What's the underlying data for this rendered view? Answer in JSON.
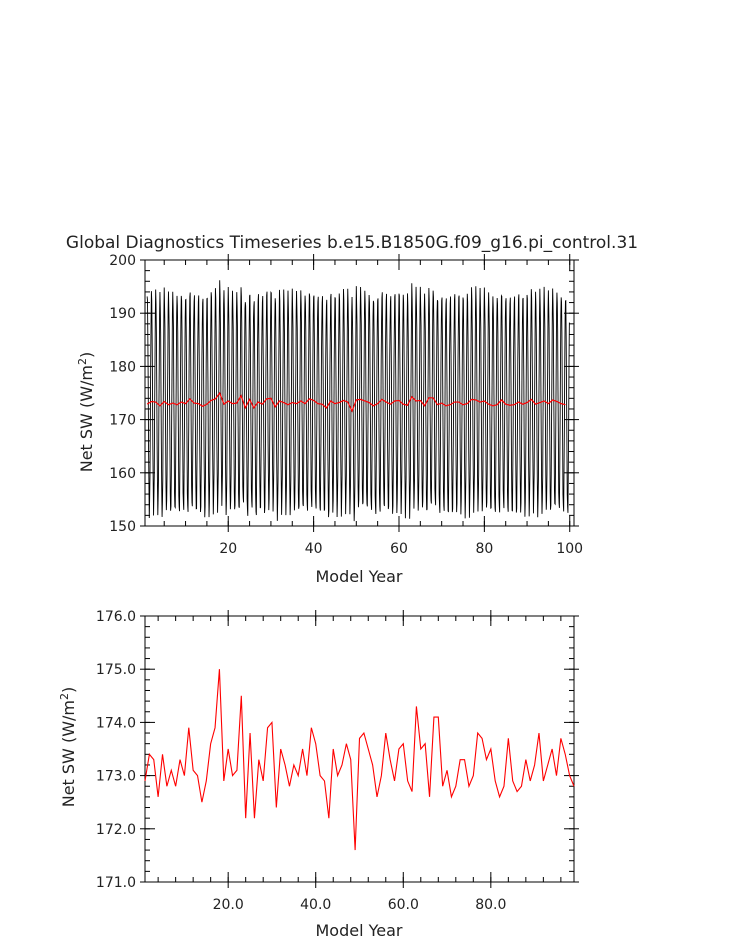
{
  "chart_data": [
    {
      "type": "line",
      "title": "Global Diagnostics Timeseries b.e15.B1850G.f09_g16.pi_control.31",
      "xlabel": "Model Year",
      "ylabel_main": "Net SW (W/m",
      "ylabel_sup": "2",
      "ylabel_tail": ")",
      "xlim": [
        0.5,
        101
      ],
      "ylim": [
        150,
        200
      ],
      "xticks": [
        "20",
        "40",
        "60",
        "80",
        "100"
      ],
      "xtick_values": [
        20,
        40,
        60,
        80,
        100
      ],
      "yticks": [
        "150",
        "160",
        "170",
        "180",
        "190",
        "200"
      ],
      "ytick_values": [
        150,
        160,
        170,
        180,
        190,
        200
      ],
      "grid": false,
      "series": [
        {
          "color": "#000000",
          "style": "monthly",
          "annual_means": [
            172.9,
            173.4,
            173.3,
            172.6,
            173.4,
            172.8,
            173.1,
            172.8,
            173.3,
            173.0,
            173.9,
            173.1,
            173.0,
            172.5,
            172.9,
            173.6,
            173.9,
            175.0,
            172.9,
            173.5,
            173.0,
            173.1,
            174.5,
            172.2,
            173.8,
            172.2,
            173.3,
            172.9,
            173.9,
            174.0,
            172.4,
            173.5,
            173.2,
            172.8,
            173.2,
            173.0,
            173.5,
            173.0,
            173.9,
            173.6,
            173.0,
            172.9,
            172.2,
            173.5,
            173.0,
            173.2,
            173.6,
            173.3,
            171.6,
            173.7,
            173.8,
            173.5,
            173.2,
            172.6,
            173.0,
            173.8,
            173.3,
            172.9,
            173.5,
            173.6,
            172.9,
            172.7,
            174.3,
            173.5,
            173.6,
            172.6,
            174.1,
            174.1,
            172.8,
            173.1,
            172.6,
            172.8,
            173.3,
            173.3,
            172.8,
            173.0,
            173.8,
            173.7,
            173.3,
            173.5,
            172.9,
            172.6,
            172.8,
            173.7,
            172.9,
            172.7,
            172.8,
            173.3,
            172.9,
            173.2,
            173.8,
            172.9,
            173.2,
            173.5,
            173.0,
            173.7,
            173.4,
            173.0,
            172.8
          ],
          "seasonal_amplitude": 20.5
        },
        {
          "color": "#ff0000",
          "style": "annual",
          "values_ref": "annual_means"
        }
      ]
    },
    {
      "type": "line",
      "xlabel": "Model Year",
      "ylabel_main": "Net SW (W/m",
      "ylabel_sup": "2",
      "ylabel_tail": ")",
      "xlim": [
        1,
        99
      ],
      "ylim": [
        171.0,
        176.0
      ],
      "xticks": [
        "20.0",
        "40.0",
        "60.0",
        "80.0"
      ],
      "xtick_values": [
        20,
        40,
        60,
        80
      ],
      "yticks": [
        "171.0",
        "172.0",
        "173.0",
        "174.0",
        "175.0",
        "176.0"
      ],
      "ytick_values": [
        171,
        172,
        173,
        174,
        175,
        176
      ],
      "grid": false,
      "series": [
        {
          "color": "#ff0000",
          "x_start": 1,
          "values": [
            172.9,
            173.4,
            173.3,
            172.6,
            173.4,
            172.8,
            173.1,
            172.8,
            173.3,
            173.0,
            173.9,
            173.1,
            173.0,
            172.5,
            172.9,
            173.6,
            173.9,
            175.0,
            172.9,
            173.5,
            173.0,
            173.1,
            174.5,
            172.2,
            173.8,
            172.2,
            173.3,
            172.9,
            173.9,
            174.0,
            172.4,
            173.5,
            173.2,
            172.8,
            173.2,
            173.0,
            173.5,
            173.0,
            173.9,
            173.6,
            173.0,
            172.9,
            172.2,
            173.5,
            173.0,
            173.2,
            173.6,
            173.3,
            171.6,
            173.7,
            173.8,
            173.5,
            173.2,
            172.6,
            173.0,
            173.8,
            173.3,
            172.9,
            173.5,
            173.6,
            172.9,
            172.7,
            174.3,
            173.5,
            173.6,
            172.6,
            174.1,
            174.1,
            172.8,
            173.1,
            172.6,
            172.8,
            173.3,
            173.3,
            172.8,
            173.0,
            173.8,
            173.7,
            173.3,
            173.5,
            172.9,
            172.6,
            172.8,
            173.7,
            172.9,
            172.7,
            172.8,
            173.3,
            172.9,
            173.2,
            173.8,
            172.9,
            173.2,
            173.5,
            173.0,
            173.7,
            173.4,
            173.0,
            172.8
          ]
        }
      ]
    }
  ]
}
